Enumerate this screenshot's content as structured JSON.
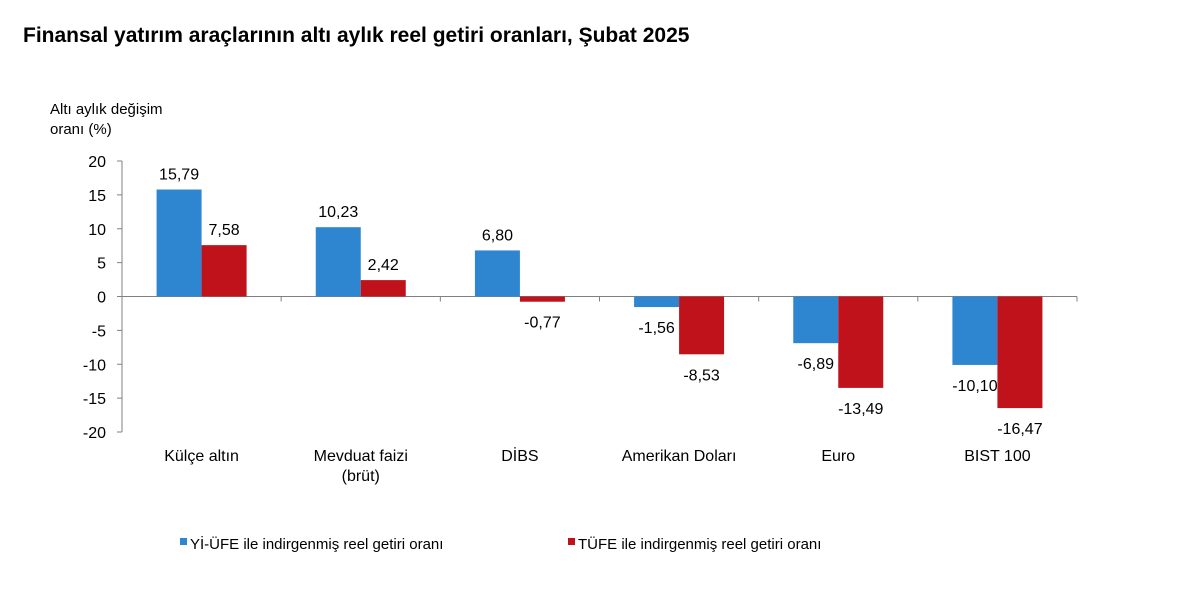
{
  "chart_data": {
    "type": "bar",
    "title": "Finansal yatırım araçlarının altı aylık reel getiri oranları, Şubat 2025",
    "ylabel": [
      "Altı aylık değişim",
      "oranı (%)"
    ],
    "xlabel": "",
    "ylim": [
      -20,
      20
    ],
    "yticks": [
      20,
      15,
      10,
      5,
      0,
      -5,
      -10,
      -15,
      -20
    ],
    "categories": [
      [
        "Külçe altın"
      ],
      [
        "Mevduat faizi",
        "(brüt)"
      ],
      [
        "DİBS"
      ],
      [
        "Amerikan Doları"
      ],
      [
        "Euro"
      ],
      [
        "BIST 100"
      ]
    ],
    "series": [
      {
        "name": "Yİ-ÜFE ile indirgenmiş reel getiri oranı",
        "color": "#2E86D0",
        "values": [
          15.79,
          10.23,
          6.8,
          -1.56,
          -6.89,
          -10.1
        ],
        "labels": [
          "15,79",
          "10,23",
          "6,80",
          "-1,56",
          "-6,89",
          "-10,10"
        ]
      },
      {
        "name": "TÜFE ile indirgenmiş reel getiri oranı",
        "color": "#C0121B",
        "values": [
          7.58,
          2.42,
          -0.77,
          -8.53,
          -13.49,
          -16.47
        ],
        "labels": [
          "7,58",
          "2,42",
          "-0,77",
          "-8,53",
          "-13,49",
          "-16,47"
        ]
      }
    ],
    "grid": false,
    "legend_position": "bottom"
  }
}
